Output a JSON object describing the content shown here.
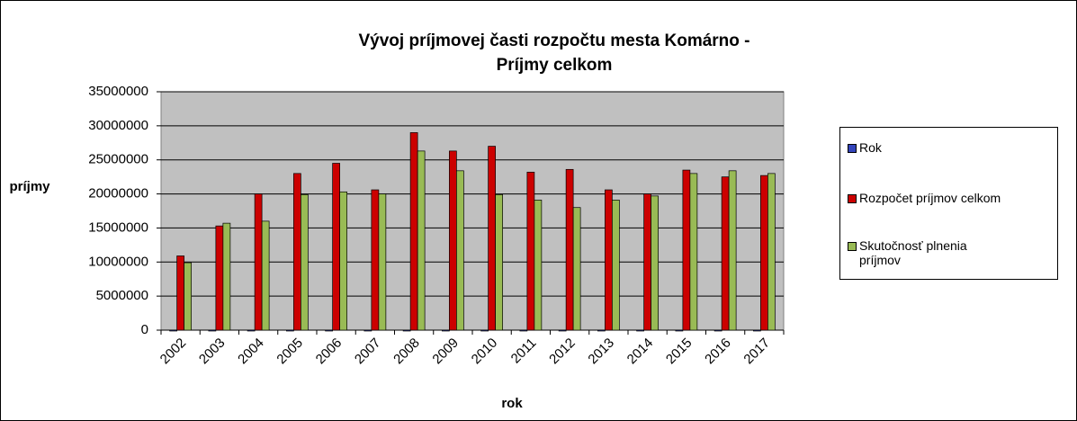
{
  "chart_data": {
    "type": "bar",
    "title": "Vývoj príjmovej časti rozpočtu mesta Komárno - Príjmy celkom",
    "x_label": "rok",
    "y_label": "príjmy",
    "categories": [
      "2002",
      "2003",
      "2004",
      "2005",
      "2006",
      "2007",
      "2008",
      "2009",
      "2010",
      "2011",
      "2012",
      "2013",
      "2014",
      "2015",
      "2016",
      "2017"
    ],
    "series": [
      {
        "name": "Rok",
        "color": "#3344bb",
        "values": [
          2002,
          2003,
          2004,
          2005,
          2006,
          2007,
          2008,
          2009,
          2010,
          2011,
          2012,
          2013,
          2014,
          2015,
          2016,
          2017
        ]
      },
      {
        "name": "Rozpočet príjmov celkom",
        "color": "#cc0000",
        "values": [
          10900000,
          15300000,
          20000000,
          23000000,
          24500000,
          20600000,
          29000000,
          26300000,
          27000000,
          23200000,
          23600000,
          20600000,
          20000000,
          23500000,
          22500000,
          22700000
        ]
      },
      {
        "name": "Skutočnosť plnenia príjmov",
        "color": "#99bb55",
        "values": [
          9900000,
          15700000,
          16000000,
          19900000,
          20300000,
          20000000,
          26300000,
          23400000,
          19900000,
          19100000,
          18000000,
          19100000,
          19700000,
          23000000,
          23400000,
          23000000
        ]
      }
    ],
    "ylim": [
      0,
      35000000
    ],
    "yticks": [
      0,
      5000000,
      10000000,
      15000000,
      20000000,
      25000000,
      30000000,
      35000000
    ],
    "grid": true,
    "legend": "right"
  }
}
